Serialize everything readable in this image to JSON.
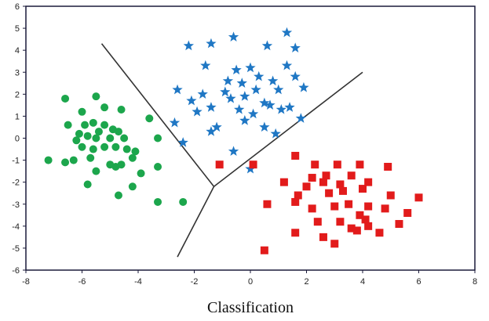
{
  "chart_data": {
    "type": "scatter",
    "title": "",
    "xlabel": "Classification",
    "ylabel": "",
    "xlim": [
      -8,
      8
    ],
    "ylim": [
      -6,
      6
    ],
    "xticks": [
      -8,
      -6,
      -4,
      -2,
      0,
      2,
      4,
      6,
      8
    ],
    "yticks": [
      -6,
      -5,
      -4,
      -3,
      -2,
      -1,
      0,
      1,
      2,
      3,
      4,
      5,
      6
    ],
    "grid": false,
    "legend": "none",
    "decision_boundaries": [
      {
        "points": [
          [
            -2.6,
            -5.4
          ],
          [
            -1.3,
            -2.2
          ]
        ]
      },
      {
        "points": [
          [
            -5.3,
            4.3
          ],
          [
            -1.3,
            -2.2
          ]
        ]
      },
      {
        "points": [
          [
            -1.3,
            -2.2
          ],
          [
            4.0,
            3.0
          ]
        ]
      }
    ],
    "series": [
      {
        "marker": "circle",
        "color": "#1ca64c",
        "points": [
          [
            -6.6,
            1.8
          ],
          [
            -5.5,
            1.9
          ],
          [
            -6.0,
            1.2
          ],
          [
            -5.2,
            1.4
          ],
          [
            -4.6,
            1.3
          ],
          [
            -6.5,
            0.6
          ],
          [
            -5.9,
            0.6
          ],
          [
            -5.6,
            0.7
          ],
          [
            -5.2,
            0.6
          ],
          [
            -5.4,
            0.3
          ],
          [
            -4.9,
            0.4
          ],
          [
            -4.7,
            0.3
          ],
          [
            -6.1,
            0.2
          ],
          [
            -5.8,
            0.1
          ],
          [
            -5.5,
            0.0
          ],
          [
            -5.0,
            0.0
          ],
          [
            -4.5,
            0.0
          ],
          [
            -6.0,
            -0.4
          ],
          [
            -5.6,
            -0.5
          ],
          [
            -5.2,
            -0.4
          ],
          [
            -4.8,
            -0.4
          ],
          [
            -4.4,
            -0.5
          ],
          [
            -4.1,
            -0.6
          ],
          [
            -7.2,
            -1.0
          ],
          [
            -6.6,
            -1.1
          ],
          [
            -6.3,
            -1.0
          ],
          [
            -5.7,
            -0.9
          ],
          [
            -5.0,
            -1.2
          ],
          [
            -4.6,
            -1.2
          ],
          [
            -4.2,
            -0.9
          ],
          [
            -5.5,
            -1.5
          ],
          [
            -4.8,
            -1.3
          ],
          [
            -3.9,
            -1.6
          ],
          [
            -3.3,
            -1.3
          ],
          [
            -5.8,
            -2.1
          ],
          [
            -4.2,
            -2.2
          ],
          [
            -4.7,
            -2.6
          ],
          [
            -3.3,
            -2.9
          ],
          [
            -2.4,
            -2.9
          ],
          [
            -3.6,
            0.9
          ],
          [
            -3.3,
            0.0
          ],
          [
            -6.2,
            -0.1
          ]
        ]
      },
      {
        "marker": "star",
        "color": "#1f77c4",
        "points": [
          [
            -2.2,
            4.2
          ],
          [
            -1.4,
            4.3
          ],
          [
            -0.6,
            4.6
          ],
          [
            1.3,
            4.8
          ],
          [
            1.6,
            4.1
          ],
          [
            -1.6,
            3.3
          ],
          [
            0.6,
            4.2
          ],
          [
            -0.5,
            3.1
          ],
          [
            0.0,
            3.2
          ],
          [
            1.3,
            3.3
          ],
          [
            -2.6,
            2.2
          ],
          [
            -0.8,
            2.6
          ],
          [
            0.3,
            2.8
          ],
          [
            0.8,
            2.6
          ],
          [
            1.6,
            2.8
          ],
          [
            -2.1,
            1.7
          ],
          [
            -1.7,
            2.0
          ],
          [
            -0.9,
            2.1
          ],
          [
            -0.3,
            2.5
          ],
          [
            0.2,
            2.2
          ],
          [
            1.9,
            2.3
          ],
          [
            -1.9,
            1.2
          ],
          [
            -1.4,
            1.4
          ],
          [
            -0.7,
            1.8
          ],
          [
            -0.2,
            1.9
          ],
          [
            0.5,
            1.6
          ],
          [
            1.0,
            2.2
          ],
          [
            1.4,
            1.4
          ],
          [
            -2.7,
            0.7
          ],
          [
            -1.2,
            0.5
          ],
          [
            -0.4,
            1.3
          ],
          [
            0.1,
            1.1
          ],
          [
            0.7,
            1.5
          ],
          [
            1.1,
            1.3
          ],
          [
            1.8,
            0.9
          ],
          [
            -2.4,
            -0.2
          ],
          [
            -1.4,
            0.3
          ],
          [
            -0.2,
            0.8
          ],
          [
            0.5,
            0.5
          ],
          [
            0.9,
            0.2
          ],
          [
            -0.6,
            -0.6
          ],
          [
            0.0,
            -1.4
          ]
        ]
      },
      {
        "marker": "square",
        "color": "#e21b1b",
        "points": [
          [
            -1.1,
            -1.2
          ],
          [
            0.1,
            -1.2
          ],
          [
            1.6,
            -0.8
          ],
          [
            2.3,
            -1.2
          ],
          [
            3.1,
            -1.2
          ],
          [
            3.9,
            -1.2
          ],
          [
            4.9,
            -1.3
          ],
          [
            2.2,
            -1.8
          ],
          [
            2.7,
            -1.7
          ],
          [
            3.6,
            -1.7
          ],
          [
            1.2,
            -2.0
          ],
          [
            2.0,
            -2.2
          ],
          [
            2.6,
            -2.0
          ],
          [
            3.2,
            -2.1
          ],
          [
            4.2,
            -2.0
          ],
          [
            1.7,
            -2.6
          ],
          [
            2.8,
            -2.5
          ],
          [
            3.3,
            -2.4
          ],
          [
            4.0,
            -2.3
          ],
          [
            5.0,
            -2.6
          ],
          [
            6.0,
            -2.7
          ],
          [
            0.6,
            -3.0
          ],
          [
            1.6,
            -2.9
          ],
          [
            2.2,
            -3.2
          ],
          [
            3.0,
            -3.1
          ],
          [
            3.5,
            -3.0
          ],
          [
            4.2,
            -3.1
          ],
          [
            3.9,
            -3.5
          ],
          [
            4.1,
            -3.7
          ],
          [
            4.8,
            -3.2
          ],
          [
            5.6,
            -3.4
          ],
          [
            2.4,
            -3.8
          ],
          [
            3.2,
            -3.8
          ],
          [
            3.6,
            -4.1
          ],
          [
            4.2,
            -4.0
          ],
          [
            5.3,
            -3.9
          ],
          [
            1.6,
            -4.3
          ],
          [
            2.6,
            -4.5
          ],
          [
            3.8,
            -4.2
          ],
          [
            4.6,
            -4.3
          ],
          [
            0.5,
            -5.1
          ],
          [
            3.0,
            -4.8
          ]
        ]
      }
    ]
  }
}
